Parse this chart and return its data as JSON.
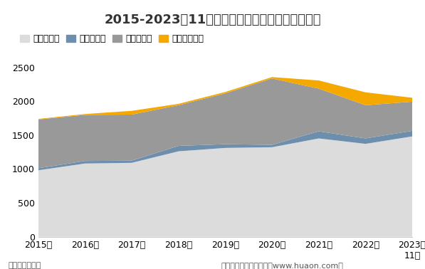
{
  "title": "2015-2023年11月贵州省各发电类型发电量统计图",
  "xlabel_bottom_left": "单位：亿千瓦时",
  "xlabel_bottom_right": "制图：华经产业研究院（www.huaon.com）",
  "years": [
    "2015年",
    "2016年",
    "2017年",
    "2018年",
    "2019年",
    "2020年",
    "2021年",
    "2022年",
    "2023年"
  ],
  "last_tick_extra": "11月",
  "x_values": [
    0,
    1,
    2,
    3,
    4,
    5,
    6,
    7,
    8
  ],
  "x_labels": [
    "2015年",
    "2016年",
    "2017年",
    "2018年",
    "2019年",
    "2020年",
    "2021年",
    "2022年",
    "2023年\n11月"
  ],
  "火力发电量": [
    980,
    1080,
    1090,
    1260,
    1310,
    1320,
    1450,
    1370,
    1480
  ],
  "风力发电量": [
    30,
    38,
    32,
    80,
    55,
    35,
    105,
    80,
    82
  ],
  "水力发电量": [
    720,
    680,
    680,
    600,
    750,
    980,
    630,
    490,
    430
  ],
  "太阳能发电量": [
    8,
    12,
    55,
    20,
    20,
    20,
    120,
    190,
    58
  ],
  "colors": {
    "火力发电量": "#dcdcdc",
    "风力发电量": "#6d8fad",
    "水力发电量": "#999999",
    "太阳能发电量": "#f5a800"
  },
  "ylim": [
    0,
    2500
  ],
  "yticks": [
    0,
    500,
    1000,
    1500,
    2000,
    2500
  ],
  "background_color": "#ffffff",
  "title_fontsize": 13,
  "legend_fontsize": 9,
  "tick_fontsize": 9,
  "footer_fontsize": 8
}
